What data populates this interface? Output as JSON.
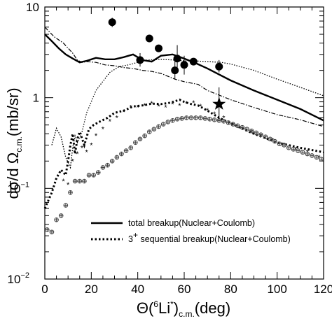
{
  "chart_data": {
    "type": "scatter",
    "xlabel": {
      "prefix": "Θ(",
      "sup": "6",
      "mid": "Li",
      "sup2": "*",
      "close": ")",
      "sub": "c.m.",
      "suffix": "(deg)"
    },
    "ylabel": {
      "prefix": "dσ/d Ω",
      "sub": "c.m.",
      "suffix": "(mb/sr)"
    },
    "xlim": [
      0,
      120
    ],
    "ylim": [
      0.01,
      10
    ],
    "ylog": true,
    "x_ticks": [
      {
        "value": 0,
        "label": "0"
      },
      {
        "value": 20,
        "label": "20"
      },
      {
        "value": 40,
        "label": "40"
      },
      {
        "value": 60,
        "label": "60"
      },
      {
        "value": 80,
        "label": "80"
      },
      {
        "value": 100,
        "label": "100"
      },
      {
        "value": 120,
        "label": "120"
      }
    ],
    "y_ticks": [
      {
        "value": 10,
        "base": "10",
        "exp": ""
      },
      {
        "value": 1,
        "base": "1",
        "exp": ""
      },
      {
        "value": 0.1,
        "base": "10",
        "exp": "−1"
      },
      {
        "value": 0.01,
        "base": "10",
        "exp": "−2"
      }
    ],
    "legend": {
      "placement": "bottom-center",
      "entries": [
        {
          "text": "total breakup(Nuclear+Coulomb)",
          "style": "solid"
        },
        {
          "text_pre": "3",
          "text_sup": "+",
          "text_post": " sequential breakup(Nuclear+Coulomb)",
          "style": "dotted"
        }
      ]
    },
    "data_points": [
      {
        "x": 29,
        "y": 6.8,
        "err_low": 6.0,
        "err_high": 7.6
      },
      {
        "x": 41,
        "y": 2.6,
        "err_low": 2.2,
        "err_high": 3.1
      },
      {
        "x": 45,
        "y": 4.5
      },
      {
        "x": 49,
        "y": 3.5
      },
      {
        "x": 56,
        "y": 2.0,
        "err_low": 1.6,
        "err_high": 2.6
      },
      {
        "x": 57,
        "y": 2.7,
        "err_low": 1.9,
        "err_high": 3.8
      },
      {
        "x": 60,
        "y": 2.3,
        "err_low": 1.8,
        "err_high": 2.9
      },
      {
        "x": 64,
        "y": 2.5
      },
      {
        "x": 75,
        "y": 2.2,
        "err_low": 1.9,
        "err_high": 2.6
      }
    ],
    "star_point": {
      "x": 75,
      "y": 0.85,
      "err_low": 0.55,
      "err_high": 1.3
    },
    "series": [
      {
        "style": "solid",
        "color": "#000000",
        "x": [
          0,
          3,
          6,
          9,
          12,
          15,
          18,
          22,
          26,
          30,
          34,
          38,
          42,
          46,
          50,
          55,
          60,
          65,
          70,
          80,
          90,
          100,
          110,
          120
        ],
        "y": [
          5.0,
          4.2,
          3.5,
          3.0,
          2.7,
          2.45,
          2.55,
          2.75,
          2.65,
          2.65,
          2.8,
          3.0,
          2.6,
          2.5,
          2.9,
          3.0,
          2.7,
          2.4,
          2.1,
          1.55,
          1.2,
          0.95,
          0.75,
          0.56
        ]
      },
      {
        "style": "dash-dot",
        "color": "#000000",
        "x": [
          0,
          4,
          8,
          12,
          14,
          16,
          18,
          22,
          26,
          30,
          34,
          38,
          42,
          46,
          50,
          56,
          60,
          66,
          70,
          80,
          90,
          100,
          110,
          120
        ],
        "y": [
          6.0,
          4.7,
          4.0,
          3.1,
          2.6,
          2.45,
          2.5,
          2.45,
          2.3,
          2.25,
          2.15,
          2.1,
          2.0,
          1.95,
          1.85,
          1.6,
          1.5,
          1.4,
          1.2,
          0.95,
          0.78,
          0.65,
          0.57,
          0.48
        ]
      },
      {
        "style": "dotted-fine",
        "color": "#000000",
        "x": [
          3,
          5,
          7,
          9,
          11,
          12,
          13,
          14,
          16,
          18,
          20,
          22,
          24,
          28,
          32,
          36,
          40,
          44,
          50,
          56,
          60,
          64,
          70,
          76,
          80,
          90,
          100,
          110,
          120
        ],
        "y": [
          0.3,
          0.46,
          0.37,
          0.22,
          0.17,
          0.28,
          0.38,
          0.32,
          0.42,
          0.68,
          0.9,
          1.2,
          1.4,
          1.9,
          2.2,
          2.3,
          2.45,
          2.6,
          2.65,
          2.6,
          2.55,
          2.55,
          2.5,
          2.45,
          2.35,
          2.0,
          1.6,
          1.3,
          1.05
        ]
      },
      {
        "style": "dotted-thick",
        "color": "#000000",
        "x": [
          0,
          3,
          5,
          7,
          9,
          10,
          11,
          12,
          13,
          14,
          15,
          17,
          19,
          21,
          24,
          27,
          30,
          34,
          38,
          42,
          46,
          50,
          54,
          58,
          60,
          63,
          66,
          70,
          75,
          80,
          90,
          100,
          110,
          120
        ],
        "y": [
          0.06,
          0.09,
          0.13,
          0.16,
          0.14,
          0.2,
          0.3,
          0.4,
          0.24,
          0.35,
          0.42,
          0.3,
          0.45,
          0.5,
          0.55,
          0.6,
          0.68,
          0.72,
          0.8,
          0.82,
          0.86,
          0.85,
          0.88,
          0.95,
          0.9,
          0.85,
          0.82,
          0.72,
          0.6,
          0.52,
          0.4,
          0.32,
          0.28,
          0.25
        ]
      },
      {
        "style": "stars",
        "color": "#000000",
        "x": [
          8,
          10,
          12,
          14,
          16,
          18,
          20,
          22,
          25,
          28,
          31,
          34,
          37,
          40,
          43,
          46,
          49,
          52,
          55,
          58,
          61,
          64,
          67,
          70,
          73,
          77,
          81,
          85,
          89,
          93,
          98,
          103,
          108,
          113,
          118
        ],
        "y": [
          0.12,
          0.11,
          0.2,
          0.24,
          0.28,
          0.25,
          0.3,
          0.38,
          0.45,
          0.55,
          0.6,
          0.7,
          0.78,
          0.78,
          0.82,
          0.86,
          0.8,
          0.78,
          0.85,
          0.82,
          0.86,
          0.88,
          0.8,
          0.72,
          0.66,
          0.6,
          0.5,
          0.45,
          0.42,
          0.38,
          0.34,
          0.3,
          0.27,
          0.25,
          0.22
        ]
      },
      {
        "style": "crosses",
        "color": "#444444",
        "x": [
          1,
          3,
          5,
          7,
          9,
          11,
          13,
          15,
          17,
          19,
          21,
          23,
          25,
          27,
          29,
          31,
          33,
          35,
          37,
          39,
          41,
          43,
          45,
          47,
          49,
          51,
          53,
          55,
          57,
          59,
          61,
          63,
          65,
          67,
          69,
          71,
          73,
          75,
          77,
          79,
          81,
          83,
          85,
          87,
          89,
          91,
          93,
          95,
          97,
          99,
          101,
          103,
          105,
          107,
          109,
          111,
          113,
          115,
          117,
          119
        ],
        "y": [
          0.035,
          0.033,
          0.045,
          0.05,
          0.065,
          0.09,
          0.12,
          0.12,
          0.12,
          0.14,
          0.14,
          0.15,
          0.17,
          0.18,
          0.2,
          0.22,
          0.24,
          0.26,
          0.28,
          0.32,
          0.35,
          0.38,
          0.42,
          0.45,
          0.48,
          0.51,
          0.54,
          0.56,
          0.58,
          0.59,
          0.6,
          0.6,
          0.6,
          0.6,
          0.59,
          0.58,
          0.57,
          0.56,
          0.55,
          0.53,
          0.51,
          0.49,
          0.47,
          0.45,
          0.43,
          0.41,
          0.39,
          0.37,
          0.35,
          0.33,
          0.31,
          0.3,
          0.28,
          0.27,
          0.26,
          0.25,
          0.24,
          0.23,
          0.22,
          0.21
        ]
      }
    ]
  }
}
